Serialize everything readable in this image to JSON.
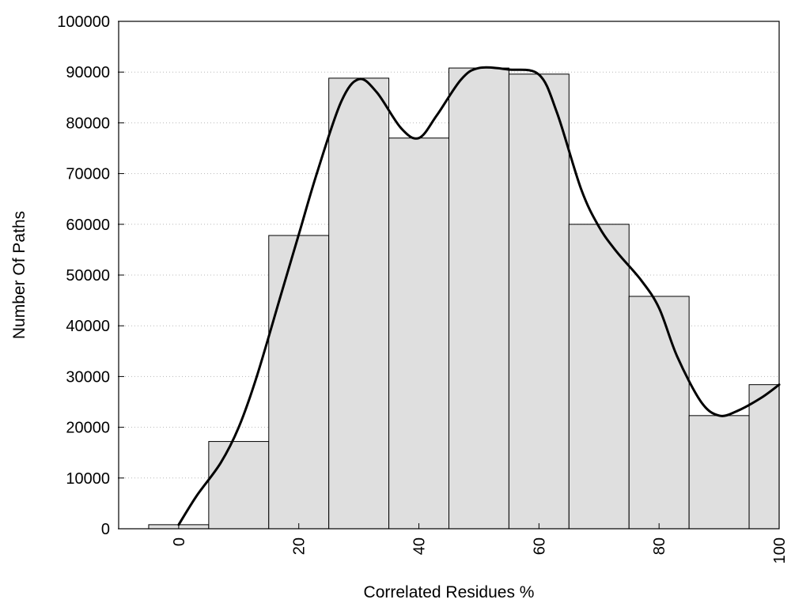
{
  "chart_data": {
    "type": "bar",
    "title": "",
    "xlabel": "Correlated Residues %",
    "ylabel": "Number Of Paths",
    "xlim": [
      -10,
      100
    ],
    "ylim": [
      0,
      100000
    ],
    "grid": "horizontal dotted",
    "x_ticks": [
      0,
      20,
      40,
      60,
      80,
      100
    ],
    "y_ticks": [
      0,
      10000,
      20000,
      30000,
      40000,
      50000,
      60000,
      70000,
      80000,
      90000,
      100000
    ],
    "bin_width": 10,
    "categories": [
      0,
      10,
      20,
      30,
      40,
      50,
      60,
      70,
      80,
      90,
      100
    ],
    "values": [
      800,
      17200,
      57800,
      88800,
      77000,
      90800,
      89600,
      60000,
      45800,
      22300,
      28400
    ],
    "bar_color": "#dfdfdf",
    "series": [
      {
        "type": "line",
        "x": [
          0,
          3,
          7,
          10,
          13,
          17,
          20,
          23,
          27,
          30,
          33,
          37,
          40,
          43,
          47,
          50,
          55,
          60,
          63,
          67,
          70,
          73,
          77,
          80,
          83,
          87,
          90,
          93,
          97,
          100
        ],
        "values": [
          800,
          6500,
          13000,
          20000,
          30000,
          46000,
          58000,
          70000,
          84000,
          88600,
          86000,
          79000,
          77000,
          81500,
          88500,
          90800,
          90500,
          89500,
          82000,
          67000,
          59500,
          54500,
          49000,
          43500,
          34000,
          25000,
          22300,
          23200,
          25800,
          28400
        ],
        "color": "#000000"
      }
    ]
  }
}
